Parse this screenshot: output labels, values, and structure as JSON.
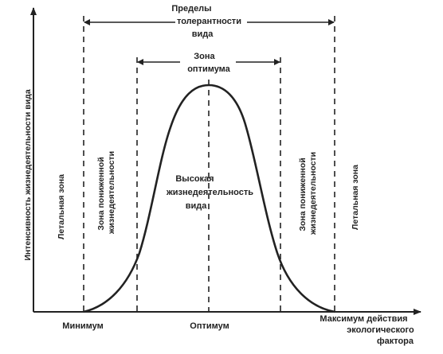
{
  "colors": {
    "ink": "#222222",
    "background": "#ffffff"
  },
  "y_axis_label": "Интенсивность жизнедеятельности вида",
  "x_axis_label": [
    "Максимум действия",
    "экологического",
    "фактора"
  ],
  "x_ticks": {
    "minimum": "Минимум",
    "optimum": "Оптимум"
  },
  "tolerance_limits": [
    "Пределы",
    "толерантности",
    "вида"
  ],
  "optimum_zone": [
    "Зона",
    "оптимума"
  ],
  "high_activity": [
    "Высокая",
    "жизнедеятельность",
    "вида"
  ],
  "zones": {
    "lethal_left": "Летальная  зона",
    "reduced_left": [
      "Зона  пониженной",
      "жизнедеятельности"
    ],
    "reduced_right": [
      "Зона  пониженной",
      "жизнедеятельности"
    ],
    "lethal_right": "Летальная зона"
  }
}
